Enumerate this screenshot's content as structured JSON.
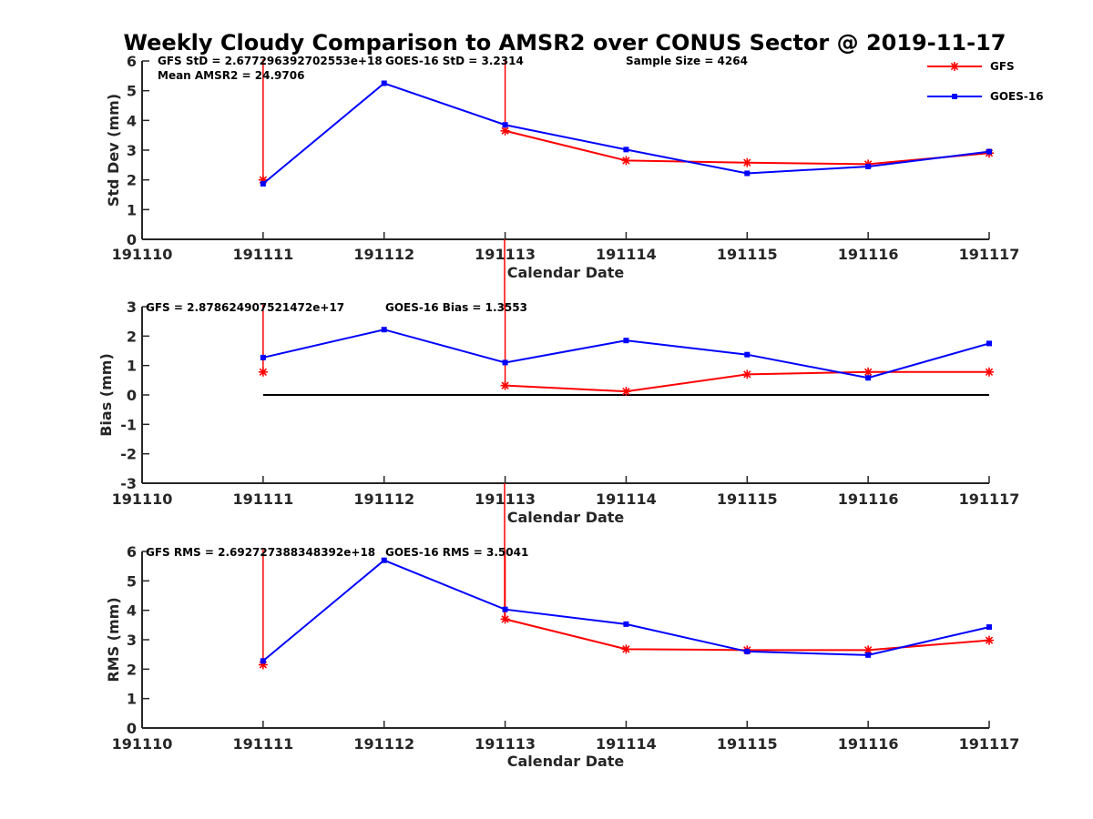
{
  "title": "Weekly Cloudy Comparison to AMSR2 over CONUS Sector @ 2019-11-17",
  "colors": {
    "gfs": "#ff0000",
    "goes": "#0000ff",
    "axis": "#262626",
    "zero_line": "#000000"
  },
  "legend": [
    {
      "name": "GFS",
      "marker": "asterisk",
      "color": "#ff0000"
    },
    {
      "name": "GOES-16",
      "marker": "square",
      "color": "#0000ff"
    }
  ],
  "chart_data": [
    {
      "type": "line",
      "name": "std-dev",
      "xlabel": "Calendar Date",
      "ylabel": "Std Dev (mm)",
      "x": [
        191111,
        191112,
        191113,
        191114,
        191115,
        191116,
        191117
      ],
      "xticks": [
        "191110",
        "191111",
        "191112",
        "191113",
        "191114",
        "191115",
        "191116",
        "191117"
      ],
      "xlim": [
        191110,
        191117
      ],
      "ylim": [
        0,
        6
      ],
      "yticks": [
        "0",
        "1",
        "2",
        "3",
        "4",
        "5",
        "6"
      ],
      "series": [
        {
          "name": "GFS",
          "values": [
            2.0,
            null,
            3.65,
            2.65,
            2.58,
            2.53,
            2.9
          ],
          "spike_at": [
            191111,
            191113
          ]
        },
        {
          "name": "GOES-16",
          "values": [
            1.87,
            5.25,
            3.85,
            3.02,
            2.22,
            2.45,
            2.95
          ]
        }
      ],
      "annotations": [
        "GFS StD = 2.677296392702553e+18",
        "GOES-16 StD = 3.2314",
        "Sample Size = 4264",
        "Mean AMSR2 = 24.9706"
      ]
    },
    {
      "type": "line",
      "name": "bias",
      "xlabel": "Calendar Date",
      "ylabel": "Bias (mm)",
      "x": [
        191111,
        191112,
        191113,
        191114,
        191115,
        191116,
        191117
      ],
      "xticks": [
        "191110",
        "191111",
        "191112",
        "191113",
        "191114",
        "191115",
        "191116",
        "191117"
      ],
      "xlim": [
        191110,
        191117
      ],
      "ylim": [
        -3,
        3
      ],
      "yticks": [
        "-3",
        "-2",
        "-1",
        "0",
        "1",
        "2",
        "3"
      ],
      "zero_line": 0,
      "series": [
        {
          "name": "GFS",
          "values": [
            0.78,
            null,
            0.32,
            0.12,
            0.7,
            0.78,
            0.78
          ],
          "spike_at": [
            191111,
            191113
          ]
        },
        {
          "name": "GOES-16",
          "values": [
            1.27,
            2.22,
            1.1,
            1.85,
            1.37,
            0.58,
            1.75
          ]
        }
      ],
      "annotations": [
        "GFS = 2.878624907521472e+17",
        "GOES-16 Bias  = 1.3553"
      ]
    },
    {
      "type": "line",
      "name": "rms",
      "xlabel": "Calendar Date",
      "ylabel": "RMS (mm)",
      "x": [
        191111,
        191112,
        191113,
        191114,
        191115,
        191116,
        191117
      ],
      "xticks": [
        "191110",
        "191111",
        "191112",
        "191113",
        "191114",
        "191115",
        "191116",
        "191117"
      ],
      "xlim": [
        191110,
        191117
      ],
      "ylim": [
        0,
        6
      ],
      "yticks": [
        "0",
        "1",
        "2",
        "3",
        "4",
        "5",
        "6"
      ],
      "series": [
        {
          "name": "GFS",
          "values": [
            2.15,
            null,
            3.7,
            2.68,
            2.65,
            2.65,
            2.98
          ],
          "spike_at": [
            191111,
            191113
          ]
        },
        {
          "name": "GOES-16",
          "values": [
            2.28,
            5.7,
            4.03,
            3.53,
            2.6,
            2.48,
            3.43
          ]
        }
      ],
      "annotations": [
        "GFS RMS = 2.692727388348392e+18",
        "GOES-16 RMS = 3.5041"
      ]
    }
  ]
}
